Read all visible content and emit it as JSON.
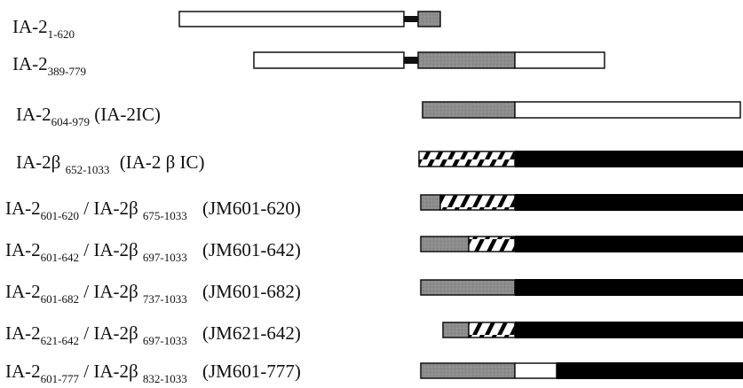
{
  "constructs": [
    {
      "name": "IA-2",
      "sub": "1-620",
      "note": ""
    },
    {
      "name": "IA-2",
      "sub": "389-779",
      "note": ""
    },
    {
      "name": "IA-2",
      "sub": "604-979",
      "note": "(IA-2IC)"
    },
    {
      "name": "IA-2β",
      "sub": "652-1033",
      "note": "(IA-2 β IC)"
    },
    {
      "name": "IA-2",
      "sub": "601-620",
      "sep": "/ IA-2β",
      "sub2": "675-1033",
      "note": "(JM601-620)"
    },
    {
      "name": "IA-2",
      "sub": "601-642",
      "sep": "/ IA-2β",
      "sub2": "697-1033",
      "note": "(JM601-642)"
    },
    {
      "name": "IA-2",
      "sub": "601-682",
      "sep": "/ IA-2β",
      "sub2": "737-1033",
      "note": "(JM601-682)"
    },
    {
      "name": "IA-2",
      "sub": "621-642",
      "sep": "/ IA-2β",
      "sub2": "697-1033",
      "note": "(JM621-642)"
    },
    {
      "name": "IA-2",
      "sub": "601-777",
      "sep": "/ IA-2β",
      "sub2": "832-1033",
      "note": "(JM601-777)"
    }
  ],
  "colors": {
    "ia2_extracellular": "#ffffff",
    "ia2_transmembrane": "#111111",
    "ia2_juxtamembrane": "#8c8c8c",
    "ia2_ptp": "#ffffff",
    "ia2beta_juxtamembrane": "hatched",
    "ia2beta_ptp": "#000000",
    "outline": "#111111"
  }
}
